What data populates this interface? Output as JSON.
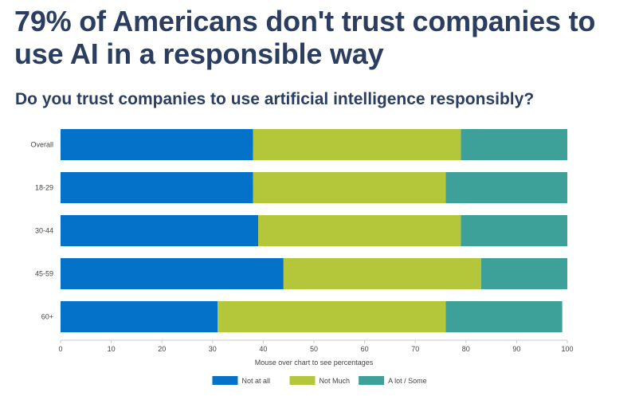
{
  "headline": "79% of Americans don't trust companies to use AI in a responsible way",
  "colors": {
    "title": "#2b3e5f",
    "axis_text": "#444444",
    "axis_line": "#cccccc",
    "not_at_all": "#0572c9",
    "not_much": "#b4c73a",
    "a_lot_some": "#3da199"
  },
  "chart_data": {
    "type": "bar",
    "orientation": "horizontal",
    "stacked": true,
    "title": "Do you trust companies to use artificial intelligence responsibly?",
    "categories": [
      "Overall",
      "18-29",
      "30-44",
      "45-59",
      "60+"
    ],
    "series": [
      {
        "name": "Not at all",
        "color": "#0572c9",
        "values": [
          38,
          38,
          39,
          44,
          31
        ]
      },
      {
        "name": "Not Much",
        "color": "#b4c73a",
        "values": [
          41,
          38,
          40,
          39,
          45
        ]
      },
      {
        "name": "A lot / Some",
        "color": "#3da199",
        "values": [
          21,
          24,
          21,
          17,
          23
        ]
      }
    ],
    "xlim": [
      0,
      100
    ],
    "xticks": [
      0,
      10,
      20,
      30,
      40,
      50,
      60,
      70,
      80,
      90,
      100
    ],
    "xlabel": "Mouse over chart to see percentages",
    "ylabel": "",
    "grid": false,
    "legend_position": "bottom-center"
  }
}
